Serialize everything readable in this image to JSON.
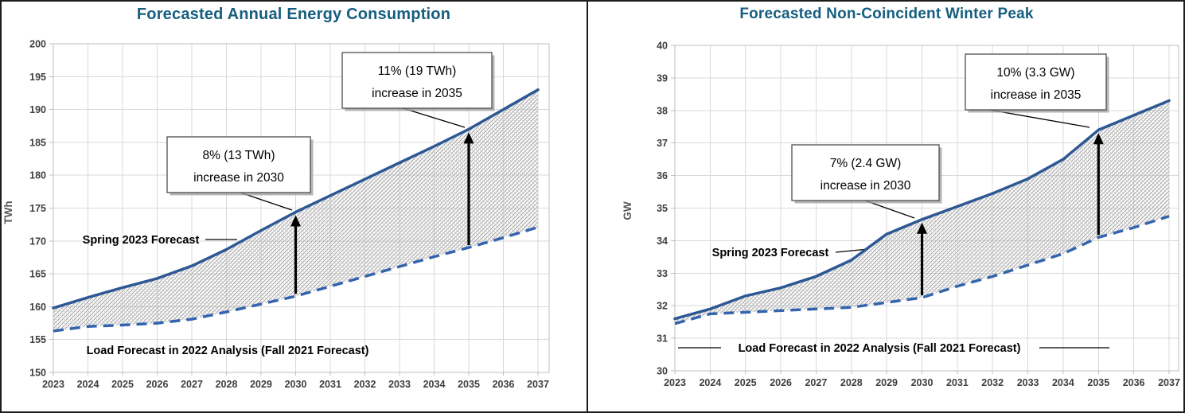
{
  "colors": {
    "title": "#155e7f",
    "solid_line": "#2e5894",
    "dashed_line": "#3464ad",
    "hatch_dark": "#999999",
    "hatch_light": "#c6c6c6",
    "gridline": "#d9d9d9",
    "axis_line": "#bfbfbf",
    "tick_label": "#3f3f3f",
    "arrow": "#000000",
    "annotation_border": "#4d4d4d",
    "annotation_shadow": "#9e9e9e",
    "frame": "#1c1c1c"
  },
  "chart_data": [
    {
      "type": "area",
      "title": "Forecasted Annual Energy Consumption",
      "ylabel": "TWh",
      "xlabel": "",
      "ylim": [
        150,
        200
      ],
      "ytick_step": 5,
      "yticks": [
        150,
        155,
        160,
        165,
        170,
        175,
        180,
        185,
        190,
        195,
        200
      ],
      "grid": true,
      "legend_position": "in-plot labels",
      "x": [
        2023,
        2024,
        2025,
        2026,
        2027,
        2028,
        2029,
        2030,
        2031,
        2032,
        2033,
        2034,
        2035,
        2036,
        2037
      ],
      "series": [
        {
          "name": "Spring 2023 Forecast",
          "line_style": "solid",
          "values": [
            159.8,
            161.4,
            162.9,
            164.3,
            166.2,
            168.7,
            171.6,
            174.4,
            176.9,
            179.4,
            181.9,
            184.4,
            187.0,
            190.0,
            193.0
          ]
        },
        {
          "name": "Load Forecast in 2022 Analysis (Fall 2021 Forecast)",
          "line_style": "dashed",
          "values": [
            156.3,
            157.0,
            157.2,
            157.5,
            158.1,
            159.2,
            160.4,
            161.6,
            163.1,
            164.6,
            166.1,
            167.6,
            169.0,
            170.5,
            172.1
          ]
        }
      ],
      "annotations": [
        {
          "line1": "8% (13 TWh)",
          "line2": "increase in 2030",
          "target_year": 2030
        },
        {
          "line1": "11% (19 TWh)",
          "line2": "increase in 2035",
          "target_year": 2035
        }
      ],
      "arrow_years": [
        2030,
        2035
      ]
    },
    {
      "type": "area",
      "title": "Forecasted Non-Coincident Winter Peak",
      "ylabel": "GW",
      "xlabel": "",
      "ylim": [
        30,
        40
      ],
      "ytick_step": 1,
      "yticks": [
        30,
        31,
        32,
        33,
        34,
        35,
        36,
        37,
        38,
        39,
        40
      ],
      "grid": true,
      "legend_position": "in-plot labels",
      "x": [
        2023,
        2024,
        2025,
        2026,
        2027,
        2028,
        2029,
        2030,
        2031,
        2032,
        2033,
        2034,
        2035,
        2036,
        2037
      ],
      "series": [
        {
          "name": "Spring 2023 Forecast",
          "line_style": "solid",
          "values": [
            31.6,
            31.9,
            32.3,
            32.55,
            32.9,
            33.4,
            34.2,
            34.65,
            35.05,
            35.45,
            35.9,
            36.5,
            37.4,
            37.85,
            38.3
          ]
        },
        {
          "name": "Load Forecast in 2022 Analysis (Fall 2021 Forecast)",
          "line_style": "dashed",
          "values": [
            31.45,
            31.75,
            31.8,
            31.85,
            31.9,
            31.95,
            32.1,
            32.25,
            32.6,
            32.9,
            33.25,
            33.6,
            34.1,
            34.4,
            34.75
          ]
        }
      ],
      "annotations": [
        {
          "line1": "7% (2.4 GW)",
          "line2": "increase in 2030",
          "target_year": 2030
        },
        {
          "line1": "10% (3.3 GW)",
          "line2": "increase in 2035",
          "target_year": 2035
        }
      ],
      "arrow_years": [
        2030,
        2035
      ]
    }
  ]
}
